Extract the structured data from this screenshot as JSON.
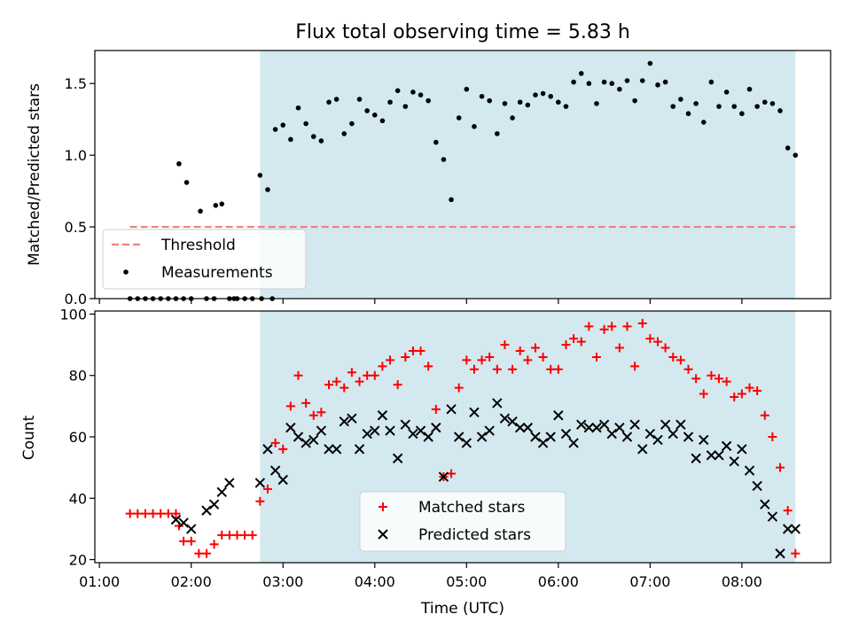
{
  "chart_data": [
    {
      "type": "scatter",
      "title": "Flux total observing time = 5.83 h",
      "xlabel": "",
      "ylabel": "Matched/Predicted stars",
      "xlim": [
        "00:57",
        "08:58"
      ],
      "ylim": [
        0,
        1.73
      ],
      "yticks": [
        "0.0",
        "0.5",
        "1.0",
        "1.5"
      ],
      "grid": false,
      "legend_position": "lower-left",
      "shaded_span": {
        "start": "02:45",
        "end": "08:35",
        "color": "#d3e9ef"
      },
      "series": [
        {
          "name": "Threshold",
          "kind": "dashed-line",
          "color": "#f08080",
          "x": [
            "01:20",
            "08:35"
          ],
          "y": [
            0.5,
            0.5
          ]
        },
        {
          "name": "Measurements",
          "kind": "points",
          "color": "#000000",
          "x": [
            "01:20",
            "01:25",
            "01:30",
            "01:35",
            "01:40",
            "01:45",
            "01:50",
            "01:55",
            "02:00",
            "02:10",
            "02:15",
            "02:25",
            "02:30",
            "02:35",
            "02:40",
            "02:45",
            "02:50",
            "02:55",
            "03:00",
            "03:05",
            "03:10",
            "03:15",
            "03:20",
            "03:25",
            "03:30",
            "03:35",
            "03:40",
            "03:45",
            "03:50",
            "03:55",
            "04:00",
            "04:05",
            "04:10",
            "04:15",
            "04:20",
            "04:25",
            "04:30",
            "04:35",
            "04:40",
            "04:45",
            "04:50",
            "04:55",
            "05:00",
            "05:05",
            "05:10",
            "05:15",
            "05:20",
            "05:25",
            "05:30",
            "05:35",
            "05:40",
            "05:45",
            "05:50",
            "05:55",
            "06:00",
            "06:05",
            "06:10",
            "06:15",
            "06:20",
            "06:25",
            "06:30",
            "06:35",
            "06:40",
            "06:45",
            "06:50",
            "06:55",
            "07:00",
            "07:05",
            "07:10",
            "07:15",
            "07:20",
            "07:25",
            "07:30",
            "07:35",
            "07:40",
            "07:45",
            "07:50",
            "07:55",
            "08:00",
            "08:05",
            "08:10",
            "08:15",
            "08:20",
            "08:25",
            "08:30",
            "08:35",
            "01:52",
            "01:57",
            "02:06",
            "02:16",
            "02:20",
            "02:28",
            "02:46",
            "02:53"
          ],
          "y": [
            0,
            0,
            0,
            0,
            0,
            0,
            0,
            0,
            0,
            0,
            0,
            0,
            0,
            0,
            0,
            0.86,
            0.76,
            1.18,
            1.21,
            1.11,
            1.33,
            1.22,
            1.13,
            1.1,
            1.37,
            1.39,
            1.15,
            1.22,
            1.39,
            1.31,
            1.28,
            1.24,
            1.37,
            1.45,
            1.34,
            1.44,
            1.42,
            1.38,
            1.09,
            0.97,
            0.69,
            1.26,
            1.46,
            1.2,
            1.41,
            1.38,
            1.15,
            1.36,
            1.26,
            1.37,
            1.35,
            1.42,
            1.43,
            1.41,
            1.37,
            1.34,
            1.51,
            1.57,
            1.5,
            1.36,
            1.51,
            1.5,
            1.46,
            1.52,
            1.38,
            1.52,
            1.64,
            1.49,
            1.51,
            1.34,
            1.39,
            1.29,
            1.36,
            1.23,
            1.51,
            1.34,
            1.44,
            1.34,
            1.29,
            1.46,
            1.34,
            1.37,
            1.36,
            1.31,
            1.05,
            1.0,
            0.94,
            0.81,
            0.61,
            0.65,
            0.66,
            0.0,
            0.0,
            0.0
          ]
        }
      ]
    },
    {
      "type": "scatter",
      "title": "",
      "xlabel": "Time (UTC)",
      "ylabel": "Count",
      "xlim": [
        "00:57",
        "08:58"
      ],
      "ylim": [
        19,
        101
      ],
      "yticks": [
        "20",
        "40",
        "60",
        "80",
        "100"
      ],
      "xticks": [
        "01:00",
        "02:00",
        "03:00",
        "04:00",
        "05:00",
        "06:00",
        "07:00",
        "08:00"
      ],
      "grid": false,
      "legend_position": "lower-center",
      "shaded_span": {
        "start": "02:45",
        "end": "08:35",
        "color": "#d3e9ef"
      },
      "series": [
        {
          "name": "Matched stars",
          "marker": "plus",
          "color": "#ff0000",
          "x": [
            "01:20",
            "01:25",
            "01:30",
            "01:35",
            "01:40",
            "01:45",
            "01:50",
            "01:52",
            "01:55",
            "02:00",
            "02:05",
            "02:10",
            "02:15",
            "02:20",
            "02:25",
            "02:30",
            "02:35",
            "02:40",
            "02:45",
            "02:50",
            "02:55",
            "03:00",
            "03:05",
            "03:10",
            "03:15",
            "03:20",
            "03:25",
            "03:30",
            "03:35",
            "03:40",
            "03:45",
            "03:50",
            "03:55",
            "04:00",
            "04:05",
            "04:10",
            "04:15",
            "04:20",
            "04:25",
            "04:30",
            "04:35",
            "04:40",
            "04:45",
            "04:50",
            "04:55",
            "05:00",
            "05:05",
            "05:10",
            "05:15",
            "05:20",
            "05:25",
            "05:30",
            "05:35",
            "05:40",
            "05:45",
            "05:50",
            "05:55",
            "06:00",
            "06:05",
            "06:10",
            "06:15",
            "06:20",
            "06:25",
            "06:30",
            "06:35",
            "06:40",
            "06:45",
            "06:50",
            "06:55",
            "07:00",
            "07:05",
            "07:10",
            "07:15",
            "07:20",
            "07:25",
            "07:30",
            "07:35",
            "07:40",
            "07:45",
            "07:50",
            "07:55",
            "08:00",
            "08:05",
            "08:10",
            "08:15",
            "08:20",
            "08:25",
            "08:30",
            "08:35"
          ],
          "y": [
            35,
            35,
            35,
            35,
            35,
            35,
            35,
            31,
            26,
            26,
            22,
            22,
            25,
            28,
            28,
            28,
            28,
            28,
            39,
            43,
            58,
            56,
            70,
            80,
            71,
            67,
            68,
            77,
            78,
            76,
            81,
            78,
            80,
            80,
            83,
            85,
            77,
            86,
            88,
            88,
            83,
            69,
            47,
            48,
            76,
            85,
            82,
            85,
            86,
            82,
            90,
            82,
            88,
            85,
            89,
            86,
            82,
            82,
            90,
            92,
            91,
            96,
            86,
            95,
            96,
            89,
            96,
            83,
            97,
            92,
            91,
            89,
            86,
            85,
            82,
            79,
            74,
            80,
            79,
            78,
            73,
            74,
            76,
            75,
            67,
            60,
            50,
            36,
            22
          ]
        },
        {
          "name": "Predicted stars",
          "marker": "x",
          "color": "#000000",
          "x": [
            "01:50",
            "01:55",
            "02:00",
            "02:10",
            "02:15",
            "02:20",
            "02:25",
            "02:45",
            "02:50",
            "02:55",
            "03:00",
            "03:05",
            "03:10",
            "03:15",
            "03:20",
            "03:25",
            "03:30",
            "03:35",
            "03:40",
            "03:45",
            "03:50",
            "03:55",
            "04:00",
            "04:05",
            "04:10",
            "04:15",
            "04:20",
            "04:25",
            "04:30",
            "04:35",
            "04:40",
            "04:45",
            "04:50",
            "04:55",
            "05:00",
            "05:05",
            "05:10",
            "05:15",
            "05:20",
            "05:25",
            "05:30",
            "05:35",
            "05:40",
            "05:45",
            "05:50",
            "05:55",
            "06:00",
            "06:05",
            "06:10",
            "06:15",
            "06:20",
            "06:25",
            "06:30",
            "06:35",
            "06:40",
            "06:45",
            "06:50",
            "06:55",
            "07:00",
            "07:05",
            "07:10",
            "07:15",
            "07:20",
            "07:25",
            "07:30",
            "07:35",
            "07:40",
            "07:45",
            "07:50",
            "07:55",
            "08:00",
            "08:05",
            "08:10",
            "08:15",
            "08:20",
            "08:25",
            "08:30",
            "08:35"
          ],
          "y": [
            33,
            32,
            30,
            36,
            38,
            42,
            45,
            45,
            56,
            49,
            46,
            63,
            60,
            58,
            59,
            62,
            56,
            56,
            65,
            66,
            56,
            61,
            62,
            67,
            62,
            53,
            64,
            61,
            62,
            60,
            63,
            47,
            69,
            60,
            58,
            68,
            60,
            62,
            71,
            66,
            65,
            63,
            63,
            60,
            58,
            60,
            67,
            61,
            58,
            64,
            63,
            63,
            64,
            61,
            63,
            60,
            64,
            56,
            61,
            59,
            64,
            61,
            64,
            60,
            53,
            59,
            54,
            54,
            57,
            52,
            56,
            49,
            44,
            38,
            34,
            22,
            30,
            30
          ]
        }
      ]
    }
  ]
}
